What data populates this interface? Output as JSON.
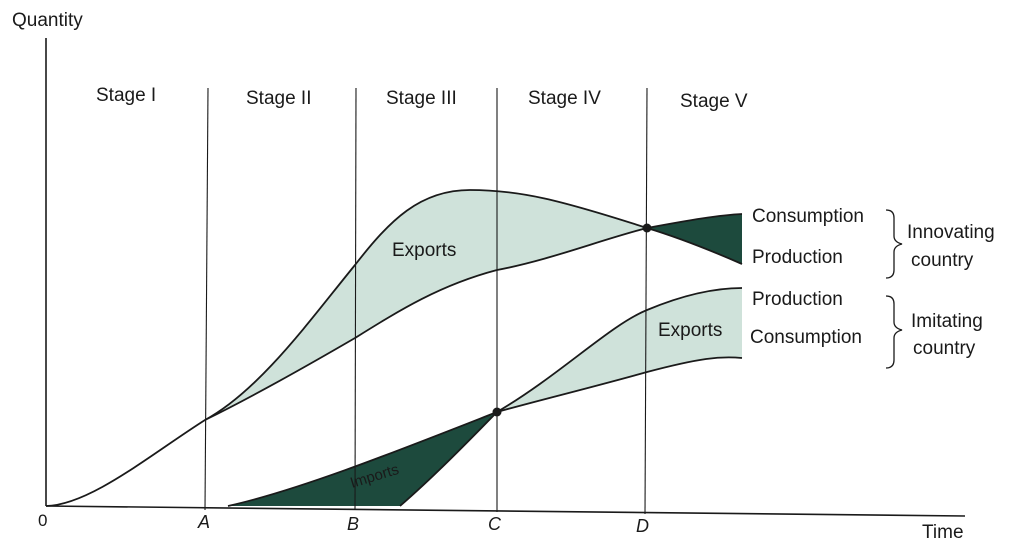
{
  "axes": {
    "y_label": "Quantity",
    "x_label": "Time",
    "origin": "0",
    "ticks": [
      "A",
      "B",
      "C",
      "D"
    ]
  },
  "stages": [
    "Stage I",
    "Stage II",
    "Stage III",
    "Stage IV",
    "Stage V"
  ],
  "areas": {
    "innovating_exports": "Exports",
    "imitating_exports": "Exports",
    "imports": "Imports"
  },
  "innovating": {
    "consumption": "Consumption",
    "production": "Production",
    "group_line1": "Innovating",
    "group_line2": "country"
  },
  "imitating": {
    "production": "Production",
    "consumption": "Consumption",
    "group_line1": "Imitating",
    "group_line2": "country"
  },
  "colors": {
    "light_fill": "#cfe2da",
    "dark_fill": "#1d4a3d",
    "line": "#1a1a1a"
  }
}
